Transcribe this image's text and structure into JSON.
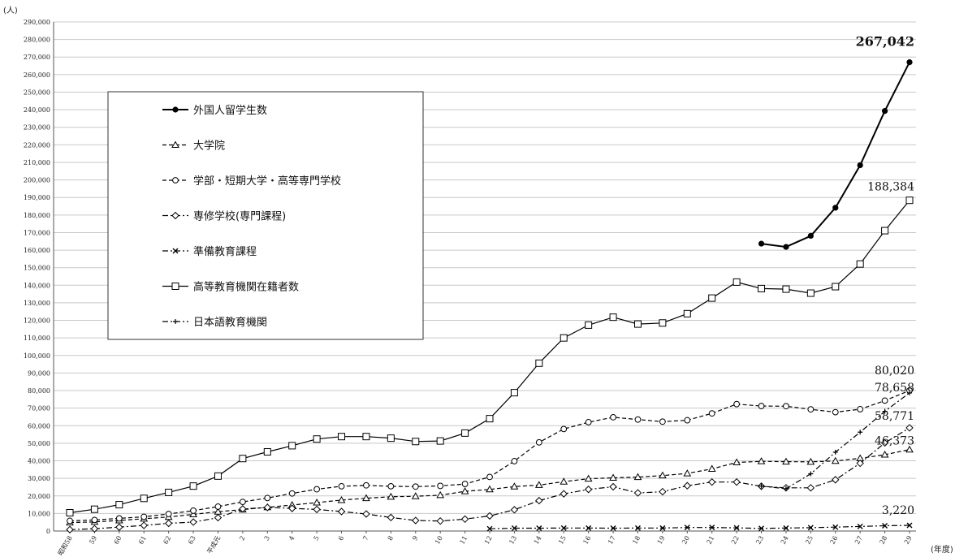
{
  "chart_data": {
    "type": "line",
    "y_unit": "(人)",
    "x_unit": "(年度)",
    "categories": [
      "昭和58",
      "59",
      "60",
      "61",
      "62",
      "63",
      "平成元",
      "2",
      "3",
      "4",
      "5",
      "6",
      "7",
      "8",
      "9",
      "10",
      "11",
      "12",
      "13",
      "14",
      "15",
      "16",
      "17",
      "18",
      "19",
      "20",
      "21",
      "22",
      "23",
      "24",
      "25",
      "26",
      "27",
      "28",
      "29"
    ],
    "y_ticks": [
      "0",
      "10,000",
      "20,000",
      "30,000",
      "40,000",
      "50,000",
      "60,000",
      "70,000",
      "80,000",
      "90,000",
      "100,000",
      "110,000",
      "120,000",
      "130,000",
      "140,000",
      "150,000",
      "160,000",
      "170,000",
      "180,000",
      "190,000",
      "200,000",
      "210,000",
      "220,000",
      "230,000",
      "240,000",
      "250,000",
      "260,000",
      "270,000",
      "280,000",
      "290,000"
    ],
    "ylim": [
      0,
      290000
    ],
    "grid": true,
    "legend_position": "top-left",
    "series": [
      {
        "name": "外国人留学生数",
        "style": "solid-filled-circle",
        "values": [
          null,
          null,
          null,
          null,
          null,
          null,
          null,
          null,
          null,
          null,
          null,
          null,
          null,
          null,
          null,
          null,
          null,
          null,
          null,
          null,
          null,
          null,
          null,
          null,
          null,
          null,
          null,
          null,
          163697,
          161848,
          168145,
          184155,
          208379,
          239287,
          267042
        ]
      },
      {
        "name": "大学院",
        "style": "dashed-triangle",
        "values": [
          4800,
          5200,
          6000,
          7000,
          8000,
          9500,
          11000,
          12200,
          13500,
          14800,
          16200,
          17600,
          18700,
          19500,
          19800,
          20400,
          22600,
          23700,
          25300,
          26200,
          28100,
          29800,
          30300,
          30700,
          31600,
          32800,
          35400,
          39100,
          39700,
          39500,
          39400,
          39900,
          41400,
          43500,
          46373
        ]
      },
      {
        "name": "学部・短期大学・高等専門学校",
        "style": "dashed-circle",
        "values": [
          5800,
          6300,
          7200,
          8100,
          9700,
          11600,
          13900,
          16600,
          18800,
          21400,
          23800,
          25500,
          26000,
          25500,
          25300,
          25700,
          26800,
          30800,
          39800,
          50500,
          58100,
          62000,
          64800,
          63500,
          62300,
          63100,
          67000,
          72300,
          71200,
          71100,
          69300,
          67700,
          69400,
          74300,
          80020
        ]
      },
      {
        "name": "専修学校(専門課程)",
        "style": "dashdot-diamond",
        "values": [
          800,
          1300,
          2200,
          3200,
          4400,
          5100,
          7600,
          12600,
          13400,
          12900,
          12300,
          11100,
          9700,
          7700,
          6000,
          5700,
          6800,
          8600,
          12100,
          17300,
          21200,
          23700,
          25200,
          21700,
          22400,
          25800,
          27900,
          27900,
          25500,
          24600,
          24600,
          29200,
          38600,
          50200,
          58771
        ]
      },
      {
        "name": "準備教育課程",
        "style": "dashdot-x",
        "values": [
          null,
          null,
          null,
          null,
          null,
          null,
          null,
          null,
          null,
          null,
          null,
          null,
          null,
          null,
          null,
          null,
          null,
          1300,
          1600,
          1600,
          1700,
          1700,
          1600,
          1700,
          1700,
          2000,
          2000,
          1800,
          1500,
          1700,
          1900,
          2200,
          2600,
          3000,
          3220
        ]
      },
      {
        "name": "高等教育機関在籍者数",
        "style": "solid-square",
        "values": [
          10400,
          12400,
          15000,
          18600,
          22000,
          25600,
          31300,
          41300,
          45100,
          48600,
          52400,
          53800,
          53800,
          52900,
          51000,
          51300,
          55800,
          64000,
          78800,
          95600,
          110000,
          117300,
          121800,
          117900,
          118500,
          123800,
          132700,
          141800,
          138100,
          137800,
          135500,
          139200,
          152100,
          171100,
          188384
        ]
      },
      {
        "name": "日本語教育機関",
        "style": "dashdot-plus",
        "values": [
          null,
          null,
          null,
          null,
          null,
          null,
          null,
          null,
          null,
          null,
          null,
          null,
          null,
          null,
          null,
          null,
          null,
          null,
          null,
          null,
          null,
          null,
          null,
          null,
          null,
          null,
          null,
          null,
          25600,
          24100,
          32600,
          44900,
          56300,
          68200,
          78658
        ]
      }
    ],
    "end_labels": [
      {
        "series": 0,
        "text": "267,042",
        "big": true
      },
      {
        "series": 5,
        "text": "188,384",
        "big": false
      },
      {
        "series": 2,
        "text": "80,020",
        "big": false
      },
      {
        "series": 6,
        "text": "78,658",
        "big": false
      },
      {
        "series": 3,
        "text": "58,771",
        "big": false
      },
      {
        "series": 1,
        "text": "46,373",
        "big": false
      },
      {
        "series": 4,
        "text": "3,220",
        "big": false
      }
    ]
  }
}
